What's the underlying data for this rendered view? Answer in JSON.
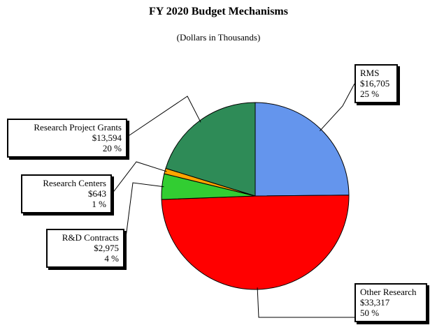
{
  "chart_data": {
    "type": "pie",
    "title": "FY 2020 Budget Mechanisms",
    "subtitle": "(Dollars in Thousands)",
    "slices": [
      {
        "label": "RMS",
        "value": 16705,
        "value_text": "$16,705",
        "percent_text": "25 %",
        "color": "#6495ED"
      },
      {
        "label": "Other Research",
        "value": 33317,
        "value_text": "$33,317",
        "percent_text": "50 %",
        "color": "#FF0000"
      },
      {
        "label": "R&D Contracts",
        "value": 2975,
        "value_text": "$2,975",
        "percent_text": "4 %",
        "color": "#32CD32"
      },
      {
        "label": "Research Centers",
        "value": 643,
        "value_text": "$643",
        "percent_text": "1 %",
        "color": "#FFA500"
      },
      {
        "label": "Research Project Grants",
        "value": 13594,
        "value_text": "$13,594",
        "percent_text": "20 %",
        "color": "#2E8B57"
      }
    ]
  }
}
